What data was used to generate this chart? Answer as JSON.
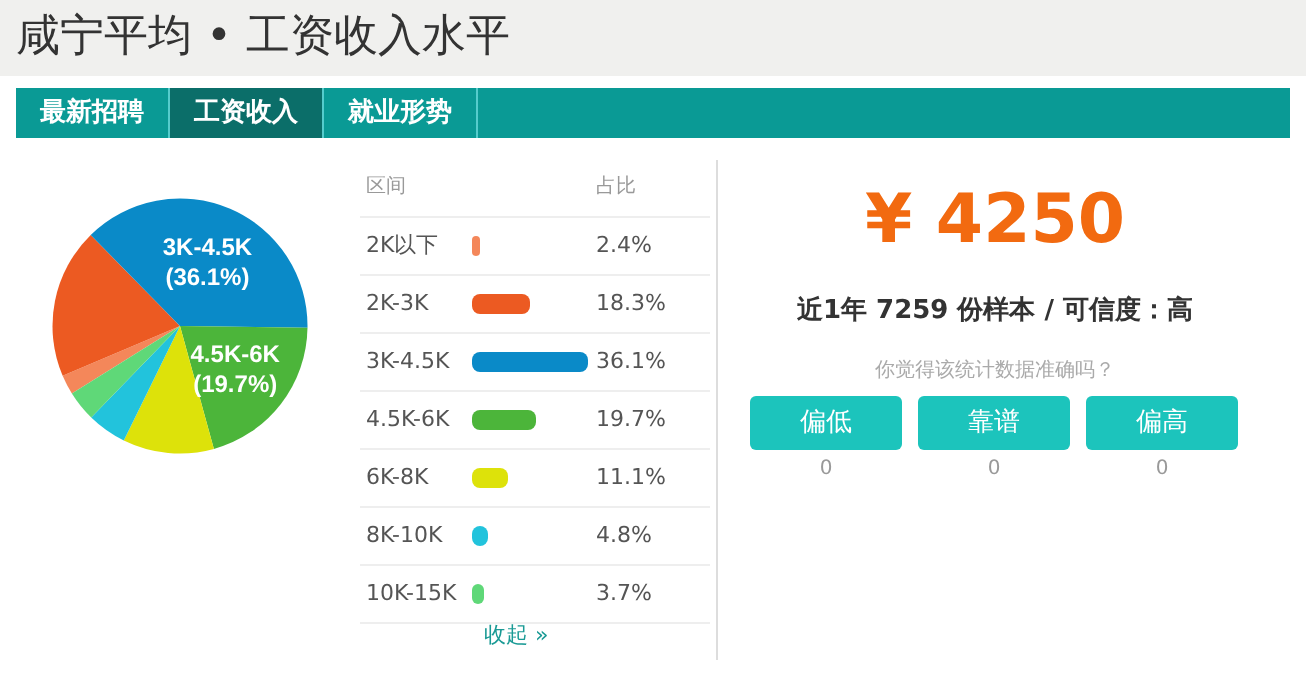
{
  "chart_data": {
    "type": "pie",
    "title": "咸宁平均 • 工资收入水平",
    "categories": [
      "2K以下",
      "2K-3K",
      "3K-4.5K",
      "4.5K-6K",
      "6K-8K",
      "8K-10K",
      "10K-15K"
    ],
    "values": [
      2.4,
      18.3,
      36.1,
      19.7,
      11.1,
      4.8,
      3.7
    ],
    "colors": [
      "#f4875a",
      "#ec5a22",
      "#0a8ac8",
      "#4cb53a",
      "#dde20a",
      "#22c3dc",
      "#5fd878"
    ],
    "value_labels": [
      null,
      null,
      "3K-4.5K\n(36.1%)",
      "4.5K-6K\n(19.7%)",
      null,
      null,
      null
    ],
    "data_labels": true,
    "legend": "right",
    "annotations": [
      "最新招聘",
      "工资收入",
      "就业形势",
      "区间",
      "占比",
      "收起 »",
      "¥ 4250",
      "近1年 7259 份样本 / 可信度：高",
      "你觉得该统计数据准确吗？",
      "偏低",
      "靠谱",
      "偏高",
      "0",
      "0",
      "0",
      "2.4%",
      "18.3%",
      "36.1%",
      "19.7%",
      "11.1%",
      "4.8%",
      "3.7%"
    ]
  }
}
